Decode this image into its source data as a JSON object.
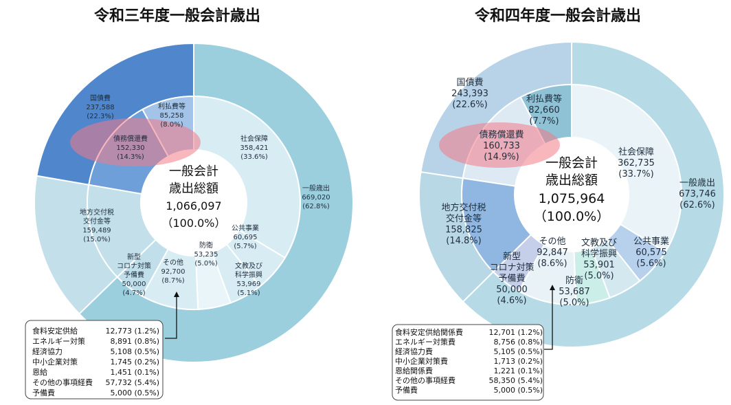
{
  "chart_data": [
    {
      "type": "pie",
      "title": "令和三年度一般会計歳出",
      "center_label": [
        "一般会計",
        "歳出総額",
        "1,066,097",
        "（100.0%）"
      ],
      "outer_ring": [
        {
          "label": "一般歳出",
          "value": "669,020",
          "pct": "(62.8%)",
          "amount": 669020,
          "color": "#9ccfde"
        },
        {
          "label": "地方交付税交付金等",
          "value": "159,489",
          "pct": "(15.0%)",
          "amount": 159489,
          "color": "#c3dfe9"
        },
        {
          "label": "国債費",
          "value": "237,588",
          "pct": "(22.3%)",
          "amount": 237588,
          "color": "#4f86cc"
        }
      ],
      "inner_ring": [
        {
          "label": [
            "社会保障"
          ],
          "value": "358,421",
          "pct": "(33.6%)",
          "amount": 358421,
          "color": "#d8ecf3"
        },
        {
          "label": [
            "公共事業"
          ],
          "value": "60,695",
          "pct": "(5.7%)",
          "amount": 60695,
          "color": "#d8ecf3"
        },
        {
          "label": [
            "文教及び",
            "科学振興"
          ],
          "value": "53,969",
          "pct": "(5.1%)",
          "amount": 53969,
          "color": "#d8ecf3"
        },
        {
          "label": [
            "防衛"
          ],
          "value": "53,235",
          "pct": "(5.0%)",
          "amount": 53235,
          "color": "#eaf5f9"
        },
        {
          "label": [
            "その他"
          ],
          "value": "92,700",
          "pct": "(8.7%)",
          "amount": 92700,
          "color": "#d8ecf3"
        },
        {
          "label": [
            "新型",
            "コロナ対策",
            "予備費"
          ],
          "value": "50,000",
          "pct": "(4.7%)",
          "amount": 50000,
          "color": "#c0dfea"
        },
        {
          "label": [
            "地方交付税",
            "交付金等"
          ],
          "value": "159,489",
          "pct": "(15.0%)",
          "amount": 159489,
          "color": "#c3dfe9"
        },
        {
          "label": [
            "債務償還費"
          ],
          "value": "152,330",
          "pct": "(14.3%)",
          "amount": 152330,
          "color": "#6f9fd9"
        },
        {
          "label": [
            "利払費等"
          ],
          "value": "85,258",
          "pct": "(8.0%)",
          "amount": 85258,
          "color": "#a3c4e8"
        }
      ],
      "breakdown": [
        {
          "item": "食料安定供給",
          "value": "12,773 (1.2%)"
        },
        {
          "item": "エネルギー対策",
          "value": "8,891 (0.8%)"
        },
        {
          "item": "経済協力",
          "value": "5,108 (0.5%)"
        },
        {
          "item": "中小企業対策",
          "value": "1,745 (0.2%)"
        },
        {
          "item": "恩給",
          "value": "1,451 (0.1%)"
        },
        {
          "item": "その他の事項経費",
          "value": "57,732 (5.4%)"
        },
        {
          "item": "予備費",
          "value": "5,000 (0.5%)"
        }
      ]
    },
    {
      "type": "pie",
      "title": "令和四年度一般会計歳出",
      "center_label": [
        "一般会計",
        "歳出総額",
        "1,075,964",
        "（100.0%）"
      ],
      "outer_ring": [
        {
          "label": "一般歳出",
          "value": "673,746",
          "pct": "(62.6%)",
          "amount": 673746,
          "color": "#b6dbe6"
        },
        {
          "label": "地方交付税交付金等",
          "value": "158,825",
          "pct": "(14.8%)",
          "amount": 158825,
          "color": "#b9d8e6"
        },
        {
          "label": "国債費",
          "value": "243,393",
          "pct": "(22.6%)",
          "amount": 243393,
          "color": "#b8d2e8"
        }
      ],
      "inner_ring": [
        {
          "label": [
            "社会保障"
          ],
          "value": "362,735",
          "pct": "(33.7%)",
          "amount": 362735,
          "color": "#eaf4f8"
        },
        {
          "label": [
            "公共事業"
          ],
          "value": "60,575",
          "pct": "(5.6%)",
          "amount": 60575,
          "color": "#b7d0ec"
        },
        {
          "label": [
            "文教及び",
            "科学振興"
          ],
          "value": "53,901",
          "pct": "(5.0%)",
          "amount": 53901,
          "color": "#d4e8f0"
        },
        {
          "label": [
            "防衛"
          ],
          "value": "53,687",
          "pct": "(5.0%)",
          "amount": 53687,
          "color": "#cbeee9"
        },
        {
          "label": [
            "その他"
          ],
          "value": "92,847",
          "pct": "(8.6%)",
          "amount": 92847,
          "color": "#e9f3f7"
        },
        {
          "label": [
            "新型",
            "コロナ対策",
            "予備費"
          ],
          "value": "50,000",
          "pct": "(4.6%)",
          "amount": 50000,
          "color": "#c6cfea"
        },
        {
          "label": [
            "地方交付税",
            "交付金等"
          ],
          "value": "158,825",
          "pct": "(14.8%)",
          "amount": 158825,
          "color": "#8fb7e2"
        },
        {
          "label": [
            "債務償還費"
          ],
          "value": "160,733",
          "pct": "(14.9%)",
          "amount": 160733,
          "color": "#dde9f3"
        },
        {
          "label": [
            "利払費等"
          ],
          "value": "82,660",
          "pct": "(7.7%)",
          "amount": 82660,
          "color": "#8fc2d4"
        }
      ],
      "breakdown": [
        {
          "item": "食料安定供給関係費",
          "value": "12,701 (1.2%)"
        },
        {
          "item": "エネルギー対策費",
          "value": "8,756 (0.8%)"
        },
        {
          "item": "経済協力費",
          "value": "5,105 (0.5%)"
        },
        {
          "item": "中小企業対策費",
          "value": "1,713 (0.2%)"
        },
        {
          "item": "恩給関係費",
          "value": "1,221 (0.1%)"
        },
        {
          "item": "その他の事項経費",
          "value": "58,350 (5.4%)"
        },
        {
          "item": "予備費",
          "value": "5,000 (0.5%)"
        }
      ]
    }
  ]
}
